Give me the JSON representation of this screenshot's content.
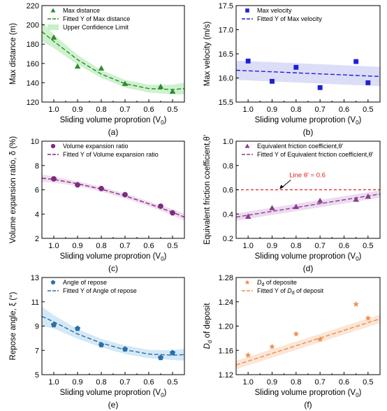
{
  "chart_data": [
    {
      "type": "scatter",
      "panel_label": "(a)",
      "xlabel": "Sliding volume proprotion (V",
      "xlabel_sub": "0",
      "xlabel_end": ")",
      "ylabel": "Max distance (m)",
      "xlim": [
        1.05,
        0.45
      ],
      "ylim": [
        120,
        220
      ],
      "xticks": [
        "1.0",
        "0.9",
        "0.8",
        "0.7",
        "0.6",
        "0.5"
      ],
      "yticks": [
        "120",
        "140",
        "160",
        "180",
        "200",
        "220"
      ],
      "marker": "triangle",
      "color": "#2e8b2e",
      "band_color": "#c9efc9",
      "x": [
        1.0,
        0.9,
        0.8,
        0.7,
        0.55,
        0.5
      ],
      "y": [
        187,
        157,
        155,
        139,
        136,
        131
      ],
      "fit": {
        "x": [
          1.05,
          1.0,
          0.9,
          0.8,
          0.7,
          0.6,
          0.5,
          0.45
        ],
        "y": [
          193,
          183,
          164,
          149,
          139,
          134,
          133,
          134
        ],
        "band": [
          10,
          7,
          5,
          4,
          4,
          4,
          5,
          6
        ]
      },
      "legend": [
        "Max distance",
        "Fitted Y of Max distance",
        "Upper Confidence Limit"
      ]
    },
    {
      "type": "scatter",
      "panel_label": "(b)",
      "xlabel": "Sliding volume proprotion (V",
      "xlabel_sub": "0",
      "xlabel_end": ")",
      "ylabel": "Max velocity (m/s)",
      "xlim": [
        1.05,
        0.45
      ],
      "ylim": [
        15.5,
        17.5
      ],
      "xticks": [
        "1.0",
        "0.9",
        "0.8",
        "0.7",
        "0.6",
        "0.5"
      ],
      "yticks": [
        "15.5",
        "16.0",
        "16.5",
        "17.0",
        "17.5"
      ],
      "marker": "square",
      "color": "#1f1fd6",
      "band_color": "#d8daf6",
      "x": [
        1.0,
        0.9,
        0.8,
        0.7,
        0.55,
        0.5
      ],
      "y": [
        16.35,
        15.93,
        16.22,
        15.8,
        16.34,
        15.9
      ],
      "fit": {
        "x": [
          1.05,
          0.45
        ],
        "y": [
          16.16,
          16.03
        ],
        "band": [
          0.2,
          0.2
        ]
      },
      "legend": [
        "Max velocity",
        "Fitted Y of Max velocity"
      ]
    },
    {
      "type": "scatter",
      "panel_label": "(c)",
      "xlabel": "Sliding volume proprotion (V",
      "xlabel_sub": "0",
      "xlabel_end": ")",
      "ylabel": "Volume expansion ratio, δ (%)",
      "xlim": [
        1.05,
        0.45
      ],
      "ylim": [
        2,
        10
      ],
      "xticks": [
        "1.0",
        "0.9",
        "0.8",
        "0.7",
        "0.6",
        "0.5"
      ],
      "yticks": [
        "2",
        "4",
        "6",
        "8",
        "10"
      ],
      "marker": "circle",
      "color": "#7b2d7b",
      "band_color": "#f0d8ee",
      "x": [
        1.0,
        0.9,
        0.8,
        0.7,
        0.55,
        0.5
      ],
      "y": [
        6.9,
        6.4,
        6.1,
        5.6,
        4.65,
        4.1
      ],
      "fit": {
        "x": [
          1.05,
          1.0,
          0.9,
          0.8,
          0.7,
          0.6,
          0.5,
          0.45
        ],
        "y": [
          6.95,
          6.85,
          6.5,
          6.05,
          5.5,
          4.85,
          4.15,
          3.75
        ],
        "band": [
          0.3,
          0.25,
          0.2,
          0.2,
          0.2,
          0.2,
          0.25,
          0.3
        ]
      },
      "legend": [
        "Volume expansion ratio",
        "Fitted Y of Volume expansion ratio"
      ]
    },
    {
      "type": "scatter",
      "panel_label": "(d)",
      "xlabel": "Sliding volume proprotion (V",
      "xlabel_sub": "0",
      "xlabel_end": ")",
      "ylabel": "Equivalent friction coefficient,θ'",
      "xlim": [
        1.05,
        0.45
      ],
      "ylim": [
        0.2,
        1.0
      ],
      "xticks": [
        "1.0",
        "0.9",
        "0.8",
        "0.7",
        "0.6",
        "0.5"
      ],
      "yticks": [
        "0.2",
        "0.4",
        "0.6",
        "0.8",
        "1.0"
      ],
      "marker": "triangle",
      "color": "#8a3d8a",
      "band_color": "#ead7ee",
      "x": [
        1.0,
        0.9,
        0.8,
        0.7,
        0.55,
        0.5
      ],
      "y": [
        0.38,
        0.45,
        0.46,
        0.51,
        0.52,
        0.545
      ],
      "fit": {
        "x": [
          1.05,
          0.45
        ],
        "y": [
          0.375,
          0.565
        ],
        "band": [
          0.03,
          0.03
        ]
      },
      "hline": {
        "y": 0.6,
        "label": "Line θ' = 0.6",
        "color": "#e02020"
      },
      "legend": [
        "Equivalent friction coefficient,θ'",
        "Fitted Y of Equivalent friction coefficient,θ'"
      ]
    },
    {
      "type": "scatter",
      "panel_label": "(e)",
      "xlabel": "Sliding volume proprotion (V",
      "xlabel_sub": "0",
      "xlabel_end": ")",
      "ylabel": "Repose angle, ξ (°)",
      "xlim": [
        1.05,
        0.45
      ],
      "ylim": [
        5,
        13
      ],
      "xticks": [
        "1.0",
        "0.9",
        "0.8",
        "0.7",
        "0.6",
        "0.5"
      ],
      "yticks": [
        "5",
        "7",
        "9",
        "11",
        "13"
      ],
      "marker": "pentagon",
      "color": "#2a6fa8",
      "band_color": "#cfe6f5",
      "x": [
        1.0,
        0.9,
        0.8,
        0.7,
        0.55,
        0.5
      ],
      "y": [
        9.1,
        8.8,
        7.45,
        7.1,
        6.4,
        6.8
      ],
      "fit": {
        "x": [
          1.05,
          1.0,
          0.9,
          0.8,
          0.7,
          0.6,
          0.5,
          0.45
        ],
        "y": [
          9.8,
          9.35,
          8.35,
          7.6,
          7.05,
          6.7,
          6.6,
          6.65
        ],
        "band": [
          0.8,
          0.55,
          0.4,
          0.35,
          0.35,
          0.35,
          0.4,
          0.5
        ]
      },
      "legend": [
        "Angle of repose",
        "Fitted Y of Angle of repose"
      ]
    },
    {
      "type": "scatter",
      "panel_label": "(f)",
      "xlabel": "Sliding volume proprotion (V",
      "xlabel_sub": "0",
      "xlabel_end": ")",
      "ylabel": "D",
      "ylabel_sub": "d",
      "ylabel_end": " of deposit",
      "xlim": [
        1.05,
        0.45
      ],
      "ylim": [
        1.12,
        1.28
      ],
      "xticks": [
        "1.0",
        "0.9",
        "0.8",
        "0.7",
        "0.6",
        "0.5"
      ],
      "yticks": [
        "1.12",
        "1.16",
        "1.20",
        "1.24",
        "1.28"
      ],
      "marker": "star",
      "color": "#f08c4a",
      "band_color": "#fbe3d3",
      "x": [
        1.0,
        0.9,
        0.8,
        0.7,
        0.55,
        0.5
      ],
      "y": [
        1.152,
        1.166,
        1.187,
        1.178,
        1.236,
        1.213
      ],
      "fit": {
        "x": [
          1.05,
          0.45
        ],
        "y": [
          1.136,
          1.212
        ],
        "band": [
          0.007,
          0.007
        ]
      },
      "legend_italic_prefix": "D",
      "legend_sub": "d",
      "legend": [
        " of deposite",
        "Fitted Y of "
      ],
      "legend_tail": " of deposit"
    }
  ]
}
